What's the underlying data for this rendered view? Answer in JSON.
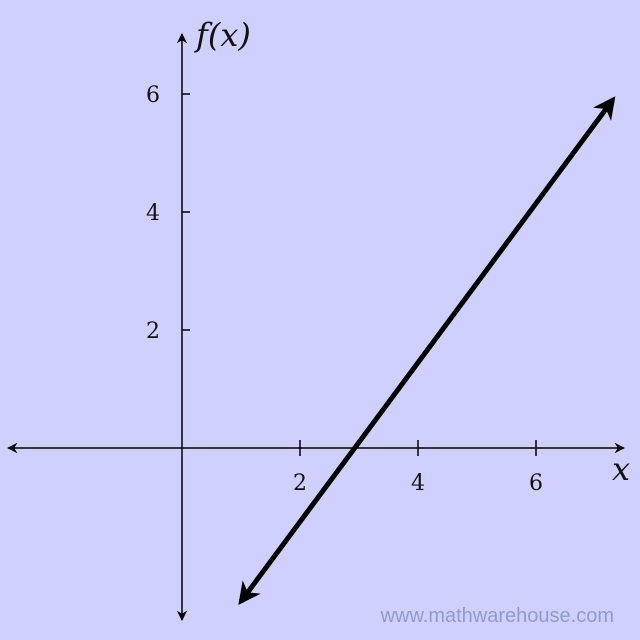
{
  "chart_data": {
    "type": "line",
    "xlabel": "x",
    "ylabel": "f(x)",
    "xlim": [
      -3,
      7.5
    ],
    "ylim": [
      -3,
      7
    ],
    "x_ticks": [
      "2",
      "4",
      "6"
    ],
    "y_ticks": [
      "2",
      "4",
      "6"
    ],
    "grid": false,
    "series": [
      {
        "x": [
          1,
          7.3
        ],
        "y": [
          -2.6,
          5.9
        ]
      }
    ],
    "colors": {
      "background": "#d0d0ff",
      "line": "#000000",
      "axis": "#000000"
    }
  },
  "watermark": "www.mathwarehouse.com"
}
